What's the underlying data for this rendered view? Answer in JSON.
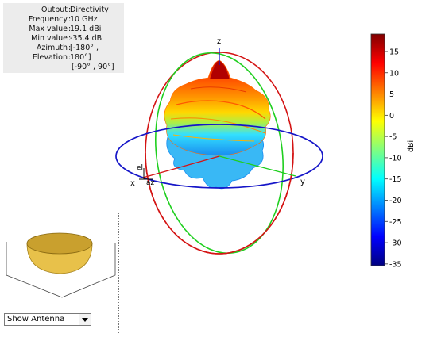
{
  "info": {
    "rows": [
      {
        "key": "Output",
        "value": "Directivity"
      },
      {
        "key": "Frequency",
        "value": "10 GHz"
      },
      {
        "key": "Max value",
        "value": "19.1 dBi"
      },
      {
        "key": "Min value",
        "value": "-35.4 dBi"
      },
      {
        "key": "Azimuth",
        "value": "[-180° ,"
      },
      {
        "key": "Elevation",
        "value": "180°]"
      },
      {
        "key": "",
        "value": "[-90° , 90°]"
      }
    ]
  },
  "axes": {
    "x": "x",
    "y": "y",
    "z": "z",
    "el": "el",
    "az": "az"
  },
  "colorbar": {
    "label": "dBi",
    "ticks": [
      "15",
      "10",
      "5",
      "0",
      "-5",
      "-10",
      "-15",
      "-20",
      "-25",
      "-30",
      "-35"
    ],
    "min": -35.4,
    "max": 19.1
  },
  "antenna": {
    "dropdown_value": "Show Antenna",
    "colors": {
      "dish": "#e8c14a",
      "rim": "#c9a02e"
    }
  },
  "colors": {
    "azimuth_circle": "#1515c8",
    "elevation_xz": "#d41414",
    "elevation_yz": "#1fcf1f"
  }
}
